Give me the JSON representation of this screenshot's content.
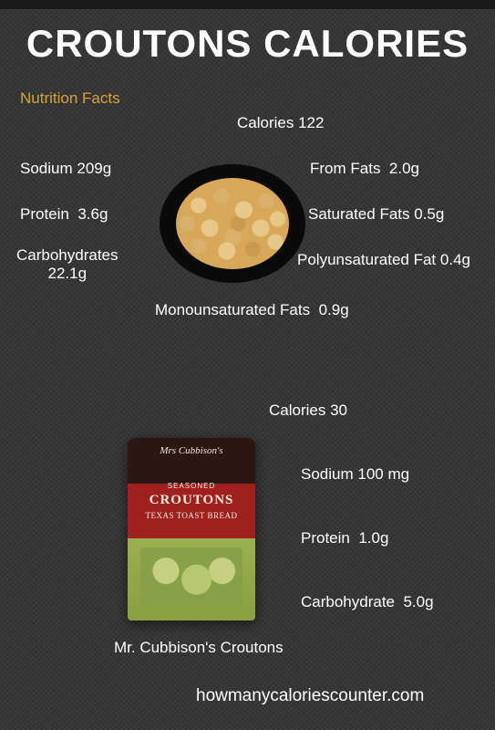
{
  "title": "CROUTONS CALORIES",
  "subtitle": "Nutrition Facts",
  "colors": {
    "background": "#3a3a3a",
    "text": "#ffffff",
    "accent": "#d4a43c",
    "crouton_light": "#e8c889",
    "crouton_dark": "#c99a4f",
    "plate": "#0a0a0a",
    "bag_top": "#2a1810",
    "bag_mid": "#a02020",
    "bag_bottom": "#8aa040"
  },
  "fonts": {
    "title_size": 42,
    "body_size": 17,
    "footer_size": 19
  },
  "generic": {
    "facts": {
      "calories": {
        "label": "Calories",
        "value": "122"
      },
      "sodium": {
        "label": "Sodium",
        "value": "209g"
      },
      "from_fats": {
        "label": "From Fats",
        "value": "2.0g"
      },
      "protein": {
        "label": "Protein",
        "value": "3.6g"
      },
      "sat_fats": {
        "label": "Saturated Fats",
        "value": "0.5g"
      },
      "carbs": {
        "label": "Carbohydrates",
        "value": "22.1g"
      },
      "poly_fat": {
        "label": "Polyunsaturated Fat",
        "value": "0.4g"
      },
      "mono_fat": {
        "label": "Monounsaturated Fats",
        "value": "0.9g"
      }
    }
  },
  "product": {
    "name": "Mr. Cubbison's Croutons",
    "bag": {
      "brand": "Mrs Cubbison's",
      "label_top": "SEASONED",
      "label_main": "CROUTONS",
      "label_sub": "TEXAS TOAST BREAD"
    },
    "facts": {
      "calories": {
        "label": "Calories",
        "value": "30"
      },
      "sodium": {
        "label": "Sodium",
        "value": "100 mg"
      },
      "protein": {
        "label": "Protein",
        "value": "1.0g"
      },
      "carb": {
        "label": "Carbohydrate",
        "value": "5.0g"
      }
    }
  },
  "footer": "howmanycaloriescounter.com"
}
